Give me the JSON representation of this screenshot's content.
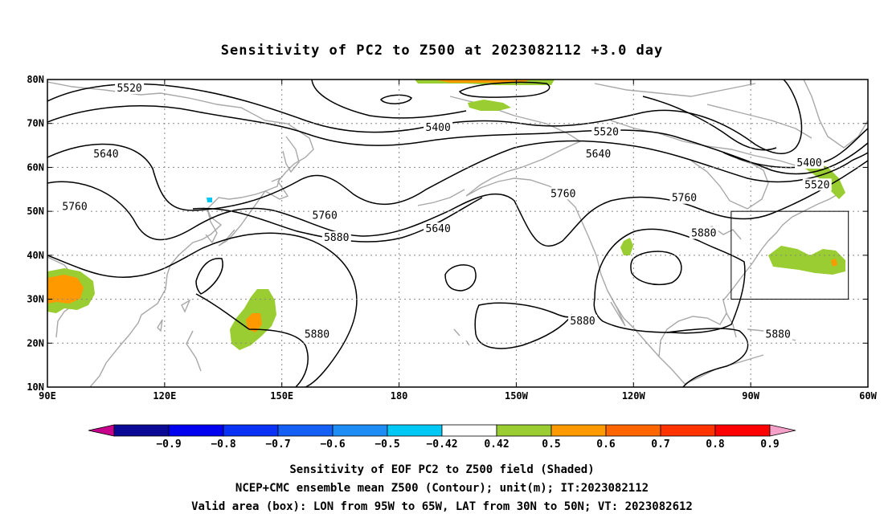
{
  "title": "Sensitivity of PC2 to Z500 at 2023082112 +3.0 day",
  "map": {
    "lon_range": [
      90,
      300
    ],
    "lat_range": [
      10,
      80
    ],
    "lon_ticks": [
      {
        "lon": 90,
        "label": "90E"
      },
      {
        "lon": 120,
        "label": "120E"
      },
      {
        "lon": 150,
        "label": "150E"
      },
      {
        "lon": 180,
        "label": "180"
      },
      {
        "lon": 210,
        "label": "150W"
      },
      {
        "lon": 240,
        "label": "120W"
      },
      {
        "lon": 270,
        "label": "90W"
      },
      {
        "lon": 300,
        "label": "60W"
      }
    ],
    "lat_ticks": [
      {
        "lat": 80,
        "label": "80N"
      },
      {
        "lat": 70,
        "label": "70N"
      },
      {
        "lat": 60,
        "label": "60N"
      },
      {
        "lat": 50,
        "label": "50N"
      },
      {
        "lat": 40,
        "label": "40N"
      },
      {
        "lat": 30,
        "label": "30N"
      },
      {
        "lat": 20,
        "label": "20N"
      },
      {
        "lat": 10,
        "label": "10N"
      }
    ],
    "valid_box": {
      "lon_min": 265,
      "lon_max": 295,
      "lat_min": 30,
      "lat_max": 50
    },
    "contour_labels": [
      {
        "text": "5520",
        "lon": 111,
        "lat": 78
      },
      {
        "text": "5400",
        "lon": 190,
        "lat": 69
      },
      {
        "text": "5520",
        "lon": 233,
        "lat": 68
      },
      {
        "text": "5640",
        "lon": 105,
        "lat": 63
      },
      {
        "text": "5640",
        "lon": 231,
        "lat": 63
      },
      {
        "text": "5400",
        "lon": 285,
        "lat": 61
      },
      {
        "text": "5520",
        "lon": 287,
        "lat": 56
      },
      {
        "text": "5760",
        "lon": 97,
        "lat": 51
      },
      {
        "text": "5760",
        "lon": 222,
        "lat": 54
      },
      {
        "text": "5760",
        "lon": 253,
        "lat": 53
      },
      {
        "text": "5760",
        "lon": 161,
        "lat": 49
      },
      {
        "text": "5640",
        "lon": 190,
        "lat": 46
      },
      {
        "text": "5880",
        "lon": 164,
        "lat": 44
      },
      {
        "text": "5880",
        "lon": 258,
        "lat": 45
      },
      {
        "text": "5880",
        "lon": 159,
        "lat": 22
      },
      {
        "text": "5880",
        "lon": 227,
        "lat": 25
      },
      {
        "text": "5880",
        "lon": 277,
        "lat": 22
      }
    ]
  },
  "colorbar": {
    "colors": [
      "#c8008c",
      "#0a0a96",
      "#0000f0",
      "#0a32f5",
      "#1460f5",
      "#1e8cf5",
      "#00c8f5",
      "#ffffff",
      "#9acd32",
      "#ff9900",
      "#ff6600",
      "#ff3300",
      "#ff0000",
      "#f5a0c8"
    ],
    "labels": [
      "-0.9",
      "-0.8",
      "-0.7",
      "-0.6",
      "-0.5",
      "-0.42",
      "0.42",
      "0.5",
      "0.6",
      "0.7",
      "0.8",
      "0.9"
    ]
  },
  "notes": [
    "Sensitivity of EOF PC2 to Z500 field (Shaded)",
    "NCEP+CMC ensemble mean Z500 (Contour); unit(m); IT:2023082112",
    "Valid area (box): LON from 95W to 65W, LAT from 30N to 50N; VT: 2023082612"
  ]
}
